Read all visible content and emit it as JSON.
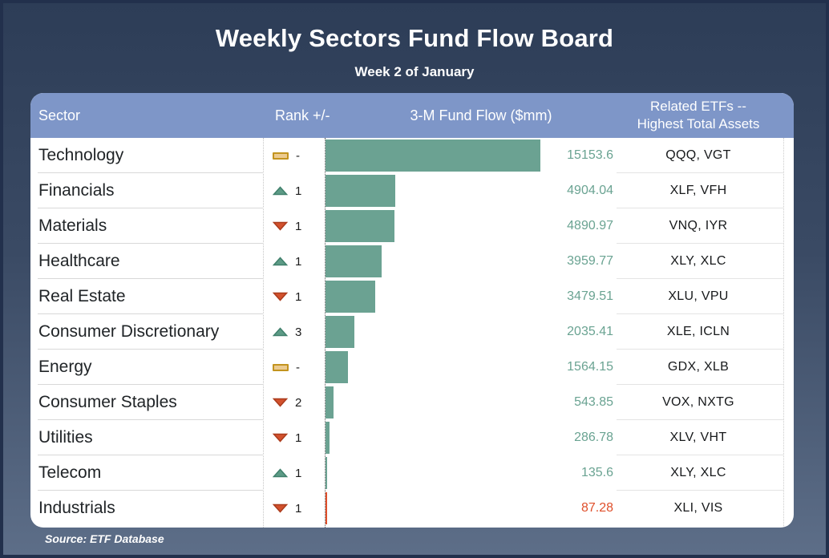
{
  "title": "Weekly Sectors Fund Flow Board",
  "subtitle": "Week 2 of January",
  "source": "Source: ETF Database",
  "table": {
    "headers": {
      "sector": "Sector",
      "rank": "Rank +/-",
      "flow": "3-M Fund Flow ($mm)",
      "etfs_line1": "Related ETFs --",
      "etfs_line2": "Highest Total Assets"
    }
  },
  "colors": {
    "header_blue": "#7e96c8",
    "bar_positive": "#6ba292",
    "value_positive": "#6aa392",
    "negative_red": "#df4f2b",
    "up_triangle": "#5d9b86",
    "up_triangle_edge": "#40806c",
    "down_triangle": "#d2512d",
    "down_triangle_edge": "#ab3c1d",
    "neutral_dash": "#eccb90",
    "neutral_dash_edge": "#c3941f"
  },
  "chart_data": {
    "type": "bar",
    "orientation": "horizontal",
    "title": "Weekly Sectors Fund Flow Board",
    "subtitle": "Week 2 of January",
    "value_label": "3-M Fund Flow ($mm)",
    "xlim": [
      0,
      15153.6
    ],
    "max_value": 15153.6,
    "rows": [
      {
        "sector": "Technology",
        "change": "none",
        "change_label": "-",
        "flow": 15153.6,
        "flow_label": "15153.6",
        "etfs": "QQQ, VGT",
        "color": "green"
      },
      {
        "sector": "Financials",
        "change": "up",
        "change_label": "1",
        "flow": 4904.04,
        "flow_label": "4904.04",
        "etfs": "XLF, VFH",
        "color": "green"
      },
      {
        "sector": "Materials",
        "change": "down",
        "change_label": "1",
        "flow": 4890.97,
        "flow_label": "4890.97",
        "etfs": "VNQ, IYR",
        "color": "green"
      },
      {
        "sector": "Healthcare",
        "change": "up",
        "change_label": "1",
        "flow": 3959.77,
        "flow_label": "3959.77",
        "etfs": "XLY, XLC",
        "color": "green"
      },
      {
        "sector": "Real Estate",
        "change": "down",
        "change_label": "1",
        "flow": 3479.51,
        "flow_label": "3479.51",
        "etfs": "XLU, VPU",
        "color": "green"
      },
      {
        "sector": "Consumer Discretionary",
        "change": "up",
        "change_label": "3",
        "flow": 2035.41,
        "flow_label": "2035.41",
        "etfs": "XLE, ICLN",
        "color": "green"
      },
      {
        "sector": "Energy",
        "change": "none",
        "change_label": "-",
        "flow": 1564.15,
        "flow_label": "1564.15",
        "etfs": "GDX, XLB",
        "color": "green"
      },
      {
        "sector": "Consumer Staples",
        "change": "down",
        "change_label": "2",
        "flow": 543.85,
        "flow_label": "543.85",
        "etfs": "VOX, NXTG",
        "color": "green"
      },
      {
        "sector": "Utilities",
        "change": "down",
        "change_label": "1",
        "flow": 286.78,
        "flow_label": "286.78",
        "etfs": "XLV, VHT",
        "color": "green"
      },
      {
        "sector": "Telecom",
        "change": "up",
        "change_label": "1",
        "flow": 135.6,
        "flow_label": "135.6",
        "etfs": "XLY, XLC",
        "color": "green"
      },
      {
        "sector": "Industrials",
        "change": "down",
        "change_label": "1",
        "flow": 87.28,
        "flow_label": "87.28",
        "etfs": "XLI, VIS",
        "color": "red"
      }
    ]
  }
}
